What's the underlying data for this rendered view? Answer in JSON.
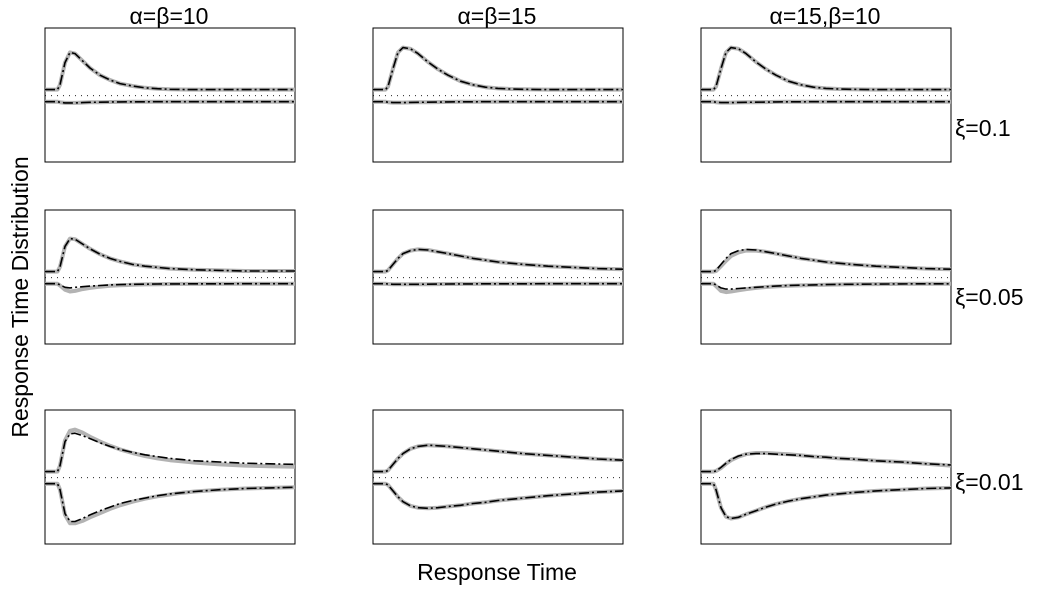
{
  "figure": {
    "ylabel": "Response Time Distribution",
    "xlabel": "Response Time"
  },
  "columns": [
    "α=β=10",
    "α=β=15",
    "α=15,β=10"
  ],
  "rows": [
    "ξ=0.1",
    "ξ=0.05",
    "ξ=0.01"
  ],
  "colors": {
    "model_curve": "#b3b3b3",
    "approx_curve": "#000000",
    "baseline": "#000000",
    "frame": "#000000"
  },
  "chart_data": {
    "type": "line",
    "description_grid": "3x3 small multiples; each panel shows a positive (upper) and negative (lower) response time density around a dotted baseline; gray solid = exact, black dash-dot = approximation",
    "x": [
      0,
      0.03,
      0.05,
      0.06,
      0.08,
      0.1,
      0.12,
      0.15,
      0.18,
      0.22,
      0.26,
      0.3,
      0.35,
      0.4,
      0.45,
      0.5,
      0.55,
      0.6,
      0.7,
      0.8,
      0.9,
      1.0
    ],
    "xlim": [
      0,
      1
    ],
    "ylim": [
      -1,
      1
    ],
    "grid": false,
    "panels": [
      {
        "row": 0,
        "col": 0,
        "upper": [
          0,
          0,
          0,
          0.08,
          0.45,
          0.62,
          0.6,
          0.48,
          0.36,
          0.24,
          0.16,
          0.1,
          0.06,
          0.03,
          0.015,
          0.005,
          0.002,
          0,
          0,
          0,
          0,
          0
        ],
        "lower": [
          0,
          0,
          0,
          -0.01,
          -0.02,
          -0.02,
          -0.02,
          -0.015,
          -0.01,
          -0.008,
          -0.005,
          -0.003,
          -0.002,
          -0.001,
          0,
          0,
          0,
          0,
          0,
          0,
          0,
          0
        ],
        "upper_exact": [
          0,
          0,
          0,
          0.08,
          0.45,
          0.62,
          0.6,
          0.48,
          0.36,
          0.24,
          0.16,
          0.1,
          0.06,
          0.03,
          0.015,
          0.005,
          0.002,
          0,
          0,
          0,
          0,
          0
        ],
        "lower_exact": [
          0,
          0,
          0,
          -0.01,
          -0.02,
          -0.02,
          -0.02,
          -0.015,
          -0.01,
          -0.008,
          -0.005,
          -0.003,
          -0.002,
          -0.001,
          0,
          0,
          0,
          0,
          0,
          0,
          0,
          0
        ]
      },
      {
        "row": 0,
        "col": 1,
        "upper": [
          0,
          0,
          0,
          0.05,
          0.35,
          0.62,
          0.7,
          0.68,
          0.6,
          0.46,
          0.34,
          0.24,
          0.14,
          0.08,
          0.04,
          0.02,
          0.01,
          0.005,
          0,
          0,
          0,
          0
        ],
        "lower": [
          0,
          0,
          0,
          -0.01,
          -0.015,
          -0.015,
          -0.015,
          -0.012,
          -0.01,
          -0.008,
          -0.006,
          -0.004,
          -0.002,
          -0.001,
          0,
          0,
          0,
          0,
          0,
          0,
          0,
          0
        ],
        "upper_exact": [
          0,
          0,
          0,
          0.05,
          0.35,
          0.62,
          0.7,
          0.68,
          0.6,
          0.46,
          0.34,
          0.24,
          0.14,
          0.08,
          0.04,
          0.02,
          0.01,
          0.005,
          0,
          0,
          0,
          0
        ],
        "lower_exact": [
          0,
          0,
          0,
          -0.01,
          -0.015,
          -0.015,
          -0.015,
          -0.012,
          -0.01,
          -0.008,
          -0.006,
          -0.004,
          -0.002,
          -0.001,
          0,
          0,
          0,
          0,
          0,
          0,
          0,
          0
        ]
      },
      {
        "row": 0,
        "col": 2,
        "upper": [
          0,
          0,
          0,
          0.05,
          0.35,
          0.62,
          0.7,
          0.68,
          0.6,
          0.46,
          0.34,
          0.24,
          0.14,
          0.08,
          0.04,
          0.02,
          0.01,
          0.005,
          0,
          0,
          0,
          0
        ],
        "lower": [
          0,
          0,
          0,
          -0.01,
          -0.015,
          -0.015,
          -0.015,
          -0.012,
          -0.01,
          -0.008,
          -0.006,
          -0.004,
          -0.002,
          -0.001,
          0,
          0,
          0,
          0,
          0,
          0,
          0,
          0
        ],
        "upper_exact": [
          0,
          0,
          0,
          0.05,
          0.35,
          0.62,
          0.7,
          0.68,
          0.6,
          0.46,
          0.34,
          0.24,
          0.14,
          0.08,
          0.04,
          0.02,
          0.01,
          0.005,
          0,
          0,
          0,
          0
        ],
        "lower_exact": [
          0,
          0,
          0,
          -0.01,
          -0.015,
          -0.015,
          -0.015,
          -0.012,
          -0.01,
          -0.008,
          -0.006,
          -0.004,
          -0.002,
          -0.001,
          0,
          0,
          0,
          0,
          0,
          0,
          0,
          0
        ]
      },
      {
        "row": 1,
        "col": 0,
        "upper": [
          0,
          0,
          0,
          0.08,
          0.42,
          0.55,
          0.54,
          0.46,
          0.38,
          0.29,
          0.22,
          0.17,
          0.12,
          0.09,
          0.07,
          0.05,
          0.04,
          0.03,
          0.02,
          0.01,
          0.01,
          0.01
        ],
        "lower": [
          0,
          0,
          0,
          -0.02,
          -0.06,
          -0.07,
          -0.06,
          -0.05,
          -0.04,
          -0.03,
          -0.02,
          -0.015,
          -0.01,
          -0.008,
          -0.005,
          -0.004,
          -0.003,
          -0.002,
          -0.001,
          0,
          0,
          0
        ],
        "upper_exact": [
          0,
          0,
          0,
          0.08,
          0.42,
          0.55,
          0.54,
          0.46,
          0.38,
          0.29,
          0.22,
          0.17,
          0.12,
          0.09,
          0.07,
          0.05,
          0.04,
          0.03,
          0.02,
          0.01,
          0.01,
          0.01
        ],
        "lower_exact": [
          0,
          0,
          0,
          -0.03,
          -0.1,
          -0.13,
          -0.12,
          -0.09,
          -0.07,
          -0.05,
          -0.035,
          -0.025,
          -0.018,
          -0.012,
          -0.008,
          -0.005,
          -0.004,
          -0.003,
          -0.002,
          -0.001,
          0,
          0
        ]
      },
      {
        "row": 1,
        "col": 1,
        "upper": [
          0,
          0,
          0,
          0.02,
          0.12,
          0.22,
          0.3,
          0.35,
          0.37,
          0.36,
          0.33,
          0.3,
          0.26,
          0.22,
          0.19,
          0.16,
          0.14,
          0.12,
          0.09,
          0.07,
          0.05,
          0.04
        ],
        "lower": [
          0,
          0,
          0,
          -0.005,
          -0.01,
          -0.01,
          -0.01,
          -0.01,
          -0.01,
          -0.008,
          -0.006,
          -0.005,
          -0.004,
          -0.003,
          -0.002,
          -0.002,
          -0.001,
          -0.001,
          0,
          0,
          0,
          0
        ],
        "upper_exact": [
          0,
          0,
          0,
          0.02,
          0.12,
          0.22,
          0.3,
          0.35,
          0.37,
          0.36,
          0.33,
          0.3,
          0.26,
          0.22,
          0.19,
          0.16,
          0.14,
          0.12,
          0.09,
          0.07,
          0.05,
          0.04
        ],
        "lower_exact": [
          0,
          0,
          0,
          -0.005,
          -0.01,
          -0.01,
          -0.01,
          -0.01,
          -0.01,
          -0.008,
          -0.006,
          -0.005,
          -0.004,
          -0.003,
          -0.002,
          -0.002,
          -0.001,
          -0.001,
          0,
          0,
          0,
          0
        ]
      },
      {
        "row": 1,
        "col": 2,
        "upper": [
          0,
          0,
          0,
          0.02,
          0.12,
          0.22,
          0.3,
          0.35,
          0.37,
          0.36,
          0.33,
          0.3,
          0.26,
          0.22,
          0.19,
          0.16,
          0.14,
          0.12,
          0.09,
          0.07,
          0.05,
          0.04
        ],
        "lower": [
          0,
          0,
          0,
          -0.02,
          -0.07,
          -0.09,
          -0.09,
          -0.08,
          -0.07,
          -0.06,
          -0.05,
          -0.04,
          -0.03,
          -0.025,
          -0.02,
          -0.015,
          -0.012,
          -0.01,
          -0.006,
          -0.004,
          -0.002,
          -0.001
        ],
        "upper_exact": [
          0,
          0,
          0,
          0.01,
          0.09,
          0.18,
          0.26,
          0.32,
          0.35,
          0.35,
          0.33,
          0.3,
          0.26,
          0.22,
          0.19,
          0.16,
          0.14,
          0.12,
          0.09,
          0.07,
          0.05,
          0.04
        ],
        "lower_exact": [
          0,
          0,
          0,
          -0.04,
          -0.12,
          -0.14,
          -0.13,
          -0.11,
          -0.09,
          -0.07,
          -0.055,
          -0.045,
          -0.035,
          -0.028,
          -0.022,
          -0.017,
          -0.013,
          -0.01,
          -0.006,
          -0.004,
          -0.002,
          -0.001
        ]
      },
      {
        "row": 2,
        "col": 0,
        "upper": [
          0,
          0,
          0,
          0.1,
          0.5,
          0.63,
          0.64,
          0.6,
          0.55,
          0.48,
          0.42,
          0.37,
          0.32,
          0.28,
          0.25,
          0.22,
          0.2,
          0.18,
          0.16,
          0.14,
          0.13,
          0.12
        ],
        "lower": [
          0,
          0,
          0,
          -0.1,
          -0.5,
          -0.63,
          -0.63,
          -0.58,
          -0.52,
          -0.45,
          -0.39,
          -0.33,
          -0.28,
          -0.24,
          -0.2,
          -0.17,
          -0.15,
          -0.13,
          -0.1,
          -0.08,
          -0.07,
          -0.06
        ],
        "upper_exact": [
          0,
          0,
          0,
          0.1,
          0.52,
          0.68,
          0.7,
          0.65,
          0.58,
          0.5,
          0.43,
          0.37,
          0.31,
          0.26,
          0.22,
          0.19,
          0.17,
          0.15,
          0.12,
          0.1,
          0.09,
          0.08
        ],
        "lower_exact": [
          0,
          0,
          0,
          -0.1,
          -0.52,
          -0.66,
          -0.66,
          -0.62,
          -0.56,
          -0.49,
          -0.42,
          -0.36,
          -0.3,
          -0.25,
          -0.21,
          -0.18,
          -0.15,
          -0.13,
          -0.1,
          -0.08,
          -0.07,
          -0.06
        ]
      },
      {
        "row": 2,
        "col": 1,
        "upper": [
          0,
          0,
          0,
          0.02,
          0.12,
          0.22,
          0.3,
          0.38,
          0.42,
          0.44,
          0.43,
          0.42,
          0.4,
          0.38,
          0.36,
          0.34,
          0.32,
          0.3,
          0.27,
          0.24,
          0.21,
          0.19
        ],
        "lower": [
          0,
          0,
          0,
          -0.02,
          -0.12,
          -0.22,
          -0.3,
          -0.37,
          -0.4,
          -0.41,
          -0.4,
          -0.38,
          -0.36,
          -0.33,
          -0.31,
          -0.28,
          -0.26,
          -0.24,
          -0.2,
          -0.17,
          -0.14,
          -0.12
        ],
        "upper_exact": [
          0,
          0,
          0,
          0.02,
          0.12,
          0.22,
          0.3,
          0.38,
          0.42,
          0.44,
          0.43,
          0.42,
          0.4,
          0.38,
          0.36,
          0.34,
          0.32,
          0.3,
          0.27,
          0.24,
          0.21,
          0.19
        ],
        "lower_exact": [
          0,
          0,
          0,
          -0.02,
          -0.12,
          -0.22,
          -0.3,
          -0.37,
          -0.4,
          -0.41,
          -0.4,
          -0.38,
          -0.36,
          -0.33,
          -0.31,
          -0.28,
          -0.26,
          -0.24,
          -0.2,
          -0.17,
          -0.14,
          -0.12
        ]
      },
      {
        "row": 2,
        "col": 2,
        "upper": [
          0,
          0,
          0,
          0.01,
          0.07,
          0.14,
          0.2,
          0.26,
          0.29,
          0.3,
          0.3,
          0.29,
          0.28,
          0.27,
          0.25,
          0.24,
          0.22,
          0.21,
          0.18,
          0.16,
          0.13,
          0.11
        ],
        "lower": [
          0,
          0,
          0,
          -0.1,
          -0.4,
          -0.55,
          -0.58,
          -0.56,
          -0.51,
          -0.45,
          -0.39,
          -0.34,
          -0.29,
          -0.25,
          -0.22,
          -0.19,
          -0.17,
          -0.15,
          -0.12,
          -0.1,
          -0.08,
          -0.07
        ],
        "upper_exact": [
          0,
          0,
          0,
          0.01,
          0.06,
          0.13,
          0.19,
          0.25,
          0.29,
          0.31,
          0.31,
          0.3,
          0.29,
          0.27,
          0.25,
          0.24,
          0.22,
          0.21,
          0.18,
          0.16,
          0.13,
          0.1
        ],
        "lower_exact": [
          0,
          0,
          0,
          -0.1,
          -0.4,
          -0.55,
          -0.58,
          -0.56,
          -0.51,
          -0.45,
          -0.39,
          -0.34,
          -0.29,
          -0.25,
          -0.22,
          -0.19,
          -0.17,
          -0.15,
          -0.12,
          -0.1,
          -0.08,
          -0.07
        ]
      }
    ]
  }
}
